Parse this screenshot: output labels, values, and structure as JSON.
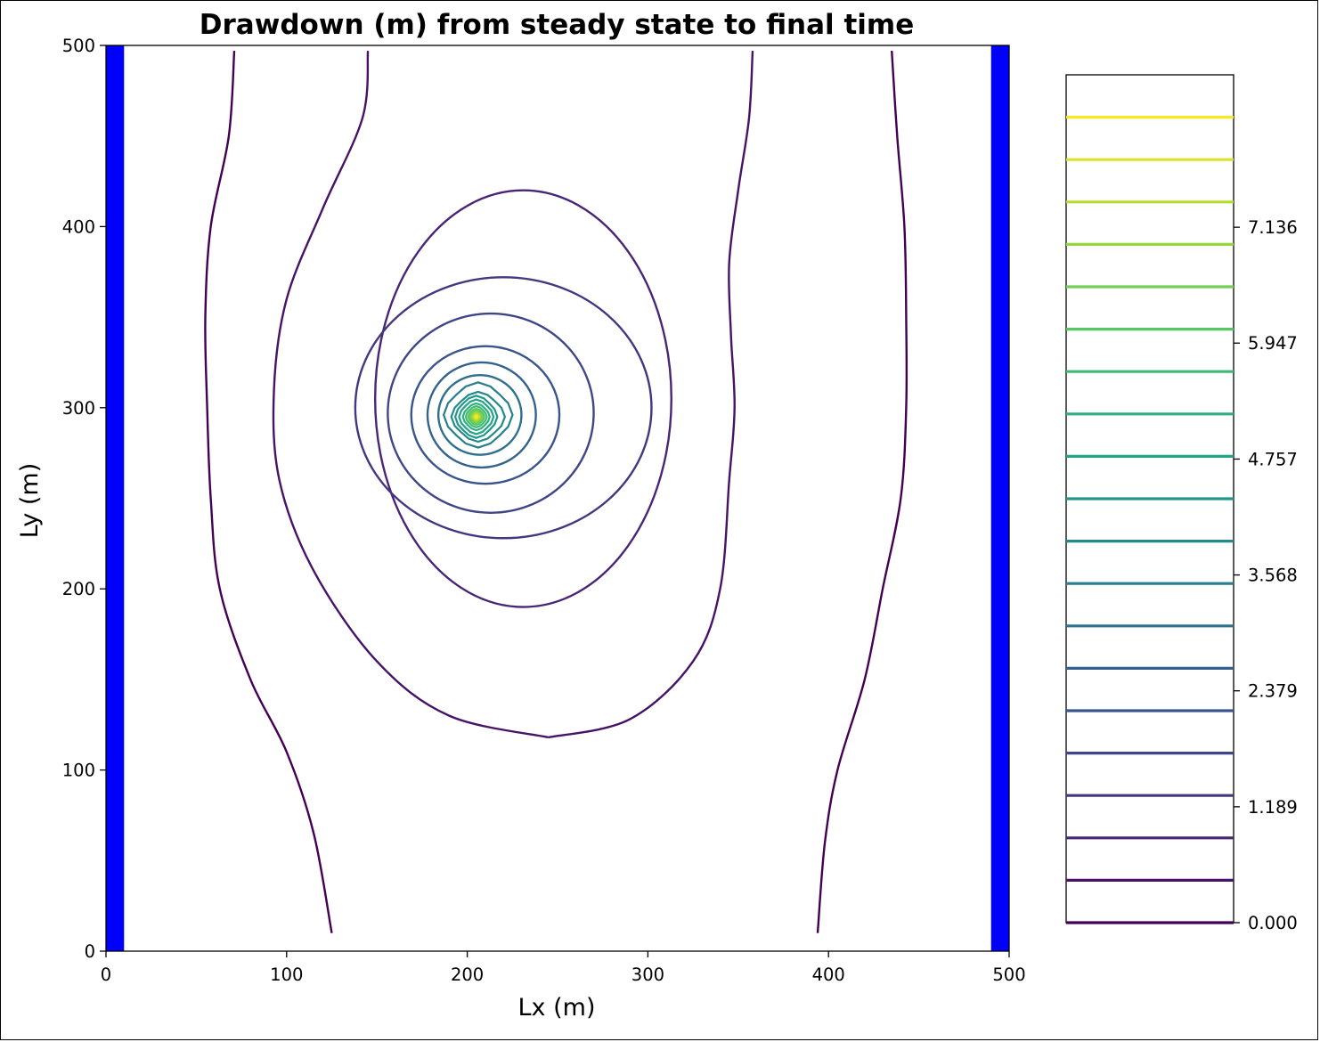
{
  "chart_data": {
    "type": "contour",
    "title": "Drawdown (m) from steady state to final time",
    "xlabel": "Lx (m)",
    "ylabel": "Ly (m)",
    "xlim": [
      0,
      500
    ],
    "ylim": [
      0,
      500
    ],
    "xticks": [
      "0",
      "100",
      "200",
      "300",
      "400",
      "500"
    ],
    "yticks": [
      "0",
      "100",
      "200",
      "300",
      "400",
      "500"
    ],
    "boundary_color": "#0000ff",
    "boundary_strips": [
      {
        "name": "left-boundary",
        "x_range": [
          0,
          10
        ]
      },
      {
        "name": "right-boundary",
        "x_range": [
          490,
          500
        ]
      }
    ],
    "well": {
      "x": 205,
      "y": 295
    },
    "colormap": "viridis",
    "colorbar": {
      "levels_min": 0.0,
      "levels_max": 8.7,
      "level_count": 20,
      "tick_labels": [
        "0.000",
        "1.189",
        "2.379",
        "3.568",
        "4.757",
        "5.947",
        "7.136"
      ]
    },
    "contours": [
      {
        "level_index": 0,
        "type": "open",
        "side": "left",
        "points": [
          [
            71,
            497
          ],
          [
            68,
            450
          ],
          [
            58,
            400
          ],
          [
            55,
            350
          ],
          [
            56,
            300
          ],
          [
            58,
            250
          ],
          [
            63,
            200
          ],
          [
            80,
            150
          ],
          [
            100,
            110
          ],
          [
            115,
            65
          ],
          [
            125,
            10
          ]
        ]
      },
      {
        "level_index": 0,
        "type": "open",
        "side": "right",
        "points": [
          [
            435,
            497
          ],
          [
            438,
            450
          ],
          [
            442,
            400
          ],
          [
            443,
            350
          ],
          [
            443,
            300
          ],
          [
            440,
            250
          ],
          [
            430,
            200
          ],
          [
            420,
            150
          ],
          [
            405,
            100
          ],
          [
            398,
            60
          ],
          [
            394,
            10
          ]
        ]
      },
      {
        "level_index": 1,
        "type": "open",
        "side": "left",
        "points": [
          [
            145,
            497
          ],
          [
            142,
            460
          ],
          [
            120,
            410
          ],
          [
            100,
            360
          ],
          [
            93,
            310
          ],
          [
            96,
            260
          ],
          [
            115,
            210
          ],
          [
            150,
            160
          ],
          [
            190,
            130
          ],
          [
            245,
            118
          ]
        ]
      },
      {
        "level_index": 1,
        "type": "open",
        "side": "right",
        "points": [
          [
            245,
            118
          ],
          [
            290,
            128
          ],
          [
            325,
            160
          ],
          [
            340,
            200
          ],
          [
            345,
            260
          ],
          [
            348,
            300
          ],
          [
            346,
            340
          ],
          [
            345,
            380
          ],
          [
            350,
            420
          ],
          [
            356,
            460
          ],
          [
            358,
            497
          ]
        ]
      },
      {
        "level_index": 2,
        "type": "closed",
        "cx": 231,
        "cy": 305,
        "rx": 82,
        "ry": 115
      },
      {
        "level_index": 3,
        "type": "closed",
        "cx": 220,
        "cy": 300,
        "rx": 82,
        "ry": 72
      },
      {
        "level_index": 4,
        "type": "closed",
        "cx": 213,
        "cy": 297,
        "rx": 57,
        "ry": 55
      },
      {
        "level_index": 5,
        "type": "closed",
        "cx": 210,
        "cy": 296,
        "rx": 41,
        "ry": 38
      },
      {
        "level_index": 6,
        "type": "closed",
        "cx": 208,
        "cy": 296,
        "rx": 30,
        "ry": 29
      },
      {
        "level_index": 7,
        "type": "closed",
        "cx": 207,
        "cy": 296,
        "rx": 23,
        "ry": 22
      },
      {
        "level_index": 8,
        "type": "closed",
        "cx": 206,
        "cy": 296,
        "rx": 18,
        "ry": 17
      },
      {
        "level_index": 9,
        "type": "closed",
        "cx": 206,
        "cy": 295,
        "rx": 14,
        "ry": 13
      },
      {
        "level_index": 10,
        "type": "closed",
        "cx": 205,
        "cy": 295,
        "rx": 11,
        "ry": 11
      },
      {
        "level_index": 11,
        "type": "closed",
        "cx": 205,
        "cy": 295,
        "rx": 9,
        "ry": 9
      },
      {
        "level_index": 12,
        "type": "closed",
        "cx": 205,
        "cy": 295,
        "rx": 7,
        "ry": 7
      },
      {
        "level_index": 13,
        "type": "closed",
        "cx": 205,
        "cy": 295,
        "rx": 5.5,
        "ry": 5.5
      },
      {
        "level_index": 14,
        "type": "closed",
        "cx": 205,
        "cy": 295,
        "rx": 4.2,
        "ry": 4.2
      },
      {
        "level_index": 15,
        "type": "closed",
        "cx": 205,
        "cy": 295,
        "rx": 3.2,
        "ry": 3.2
      },
      {
        "level_index": 16,
        "type": "closed",
        "cx": 205,
        "cy": 295,
        "rx": 2.4,
        "ry": 2.4
      },
      {
        "level_index": 17,
        "type": "closed",
        "cx": 205,
        "cy": 295,
        "rx": 1.6,
        "ry": 1.6
      },
      {
        "level_index": 18,
        "type": "closed",
        "cx": 205,
        "cy": 295,
        "rx": 1.0,
        "ry": 1.0
      },
      {
        "level_index": 19,
        "type": "closed",
        "cx": 205,
        "cy": 295,
        "rx": 0.5,
        "ry": 0.5
      }
    ]
  }
}
